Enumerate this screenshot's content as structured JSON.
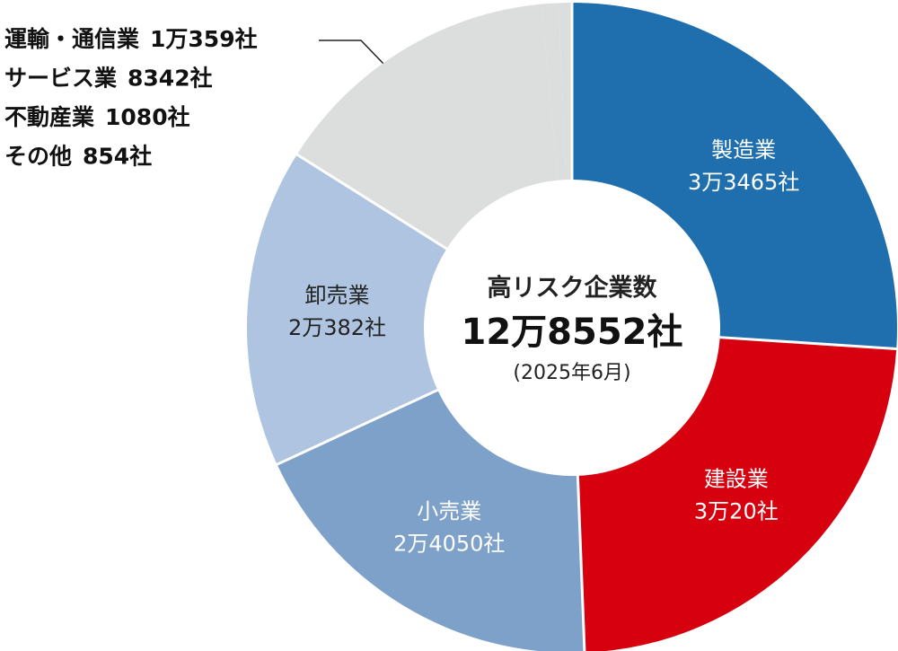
{
  "chart_data": {
    "type": "donut",
    "center_title": "高リスク企業数",
    "center_value": "12万8552社",
    "center_note": "(2025年6月)",
    "categories": [
      "製造業",
      "建設業",
      "小売業",
      "卸売業",
      "運輸・通信業",
      "サービス業",
      "不動産業",
      "その他"
    ],
    "values": [
      33465,
      30020,
      24050,
      20382,
      10359,
      8342,
      1080,
      854
    ],
    "value_labels": [
      "3万3465社",
      "3万20社",
      "2万4050社",
      "2万382社",
      "1万359社",
      "8342社",
      "1080社",
      "854社"
    ],
    "colors": [
      "#1f6fae",
      "#d7000f",
      "#7ea1c9",
      "#aec4e0",
      "#dcdddd",
      "#dcdddd",
      "#dcdddd",
      "#dcdddd"
    ],
    "label_position": [
      "inside",
      "inside",
      "inside",
      "inside",
      "list",
      "list",
      "list",
      "list"
    ]
  }
}
